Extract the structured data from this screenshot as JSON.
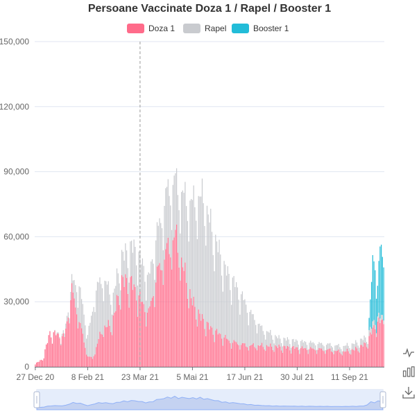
{
  "chart_data": {
    "type": "bar",
    "stacked": true,
    "title": "Persoane Vaccinate Doza 1 / Rapel / Booster 1",
    "xlabel": "",
    "ylabel": "",
    "ylim": [
      0,
      150000
    ],
    "yticks": [
      "0",
      "30,000",
      "60,000",
      "90,000",
      "120,000",
      "150,000"
    ],
    "yticks_values": [
      0,
      30000,
      60000,
      90000,
      120000,
      150000
    ],
    "xticks": [
      "27 Dec 20",
      "8 Feb 21",
      "23 Mar 21",
      "5 Mai 21",
      "17 Jun 21",
      "30 Jul 21",
      "11 Sep 21"
    ],
    "x_start": "2020-12-27",
    "x_end": "2021-10-09",
    "legend_position": "top-center",
    "grid": true,
    "marker_line_date": "2021-03-23",
    "weekly_pattern_note": "Sundays lower",
    "series": [
      {
        "name": "Doza 1",
        "color": "#ff6b8a",
        "anchor_dates": [
          "2020-12-27",
          "2021-01-02",
          "2021-01-08",
          "2021-01-15",
          "2021-01-20",
          "2021-01-26",
          "2021-02-01",
          "2021-02-08",
          "2021-02-12",
          "2021-02-20",
          "2021-02-28",
          "2021-03-08",
          "2021-03-15",
          "2021-03-23",
          "2021-03-30",
          "2021-04-06",
          "2021-04-14",
          "2021-04-21",
          "2021-04-28",
          "2021-05-05",
          "2021-05-12",
          "2021-05-20",
          "2021-05-28",
          "2021-06-05",
          "2021-06-12",
          "2021-06-20",
          "2021-06-28",
          "2021-07-10",
          "2021-07-25",
          "2021-08-10",
          "2021-08-25",
          "2021-09-05",
          "2021-09-15",
          "2021-09-25",
          "2021-10-02",
          "2021-10-09"
        ],
        "anchor_values": [
          1500,
          3500,
          16000,
          15000,
          14000,
          36000,
          22000,
          5000,
          4000,
          18000,
          20000,
          40000,
          40000,
          32000,
          25000,
          44000,
          55000,
          62000,
          45000,
          30000,
          23000,
          18000,
          15000,
          12000,
          11000,
          10000,
          10000,
          9500,
          9000,
          8500,
          8000,
          7000,
          8000,
          11000,
          20000,
          22000
        ]
      },
      {
        "name": "Rapel",
        "color": "#c9cbcf",
        "anchor_dates": [
          "2020-12-27",
          "2021-01-10",
          "2021-01-18",
          "2021-01-26",
          "2021-02-01",
          "2021-02-08",
          "2021-02-14",
          "2021-02-22",
          "2021-03-01",
          "2021-03-10",
          "2021-03-20",
          "2021-03-30",
          "2021-04-08",
          "2021-04-14",
          "2021-04-22",
          "2021-04-30",
          "2021-05-08",
          "2021-05-14",
          "2021-05-22",
          "2021-06-01",
          "2021-06-08",
          "2021-06-15",
          "2021-06-22",
          "2021-07-01",
          "2021-07-15",
          "2021-08-01",
          "2021-08-20",
          "2021-09-05",
          "2021-09-20",
          "2021-10-01",
          "2021-10-09"
        ],
        "anchor_values": [
          0,
          0,
          1000,
          4000,
          16000,
          10000,
          28000,
          22000,
          11000,
          12000,
          20000,
          16000,
          20000,
          27000,
          26000,
          38000,
          52000,
          58000,
          45000,
          32000,
          28000,
          22000,
          15000,
          8000,
          4000,
          3000,
          2500,
          2500,
          3000,
          2500,
          2000
        ]
      },
      {
        "name": "Booster 1",
        "color": "#22bcd8",
        "anchor_dates": [
          "2020-12-27",
          "2021-09-26",
          "2021-09-28",
          "2021-09-30",
          "2021-10-02",
          "2021-10-04",
          "2021-10-06",
          "2021-10-09"
        ],
        "anchor_values": [
          0,
          0,
          12000,
          30000,
          28000,
          15000,
          32000,
          28000
        ]
      }
    ]
  },
  "legend": {
    "items": [
      {
        "label": "Doza 1",
        "color": "#ff6b8a"
      },
      {
        "label": "Rapel",
        "color": "#c9cbcf"
      },
      {
        "label": "Booster 1",
        "color": "#22bcd8"
      }
    ]
  },
  "toolbox": {
    "line_icon": "line-chart-icon",
    "bar_icon": "bar-chart-icon",
    "save_icon": "download-icon"
  },
  "datazoom": {
    "range_start_percent": 0,
    "range_end_percent": 100
  }
}
